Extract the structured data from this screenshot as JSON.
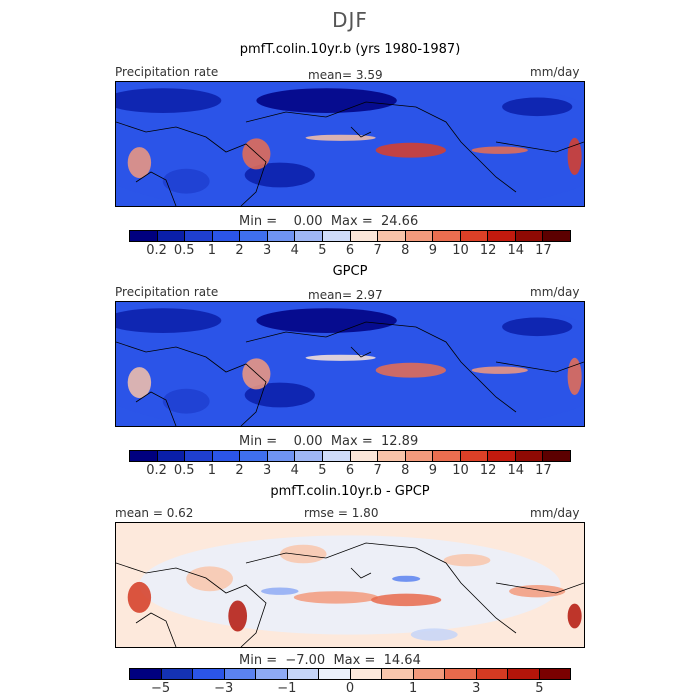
{
  "figure": {
    "season": "DJF"
  },
  "panels": [
    {
      "title": "pmfT.colin.10yr.b (yrs 1980-1987)",
      "left_label": "Precipitation rate",
      "center_label": "mean=    3.59",
      "right_label": "mm/day",
      "minmax": "Min =    0.00  Max =  24.66",
      "colorbar_ticks": [
        "0.2",
        "0.5",
        "1",
        "2",
        "3",
        "4",
        "5",
        "6",
        "7",
        "8",
        "9",
        "10",
        "12",
        "14",
        "17"
      ],
      "kind": "field"
    },
    {
      "title": "GPCP",
      "left_label": "Precipitation rate",
      "center_label": "mean=    2.97",
      "right_label": "mm/day",
      "minmax": "Min =    0.00  Max =  12.89",
      "colorbar_ticks": [
        "0.2",
        "0.5",
        "1",
        "2",
        "3",
        "4",
        "5",
        "6",
        "7",
        "8",
        "9",
        "10",
        "12",
        "14",
        "17"
      ],
      "kind": "field"
    },
    {
      "title": "pmfT.colin.10yr.b - GPCP",
      "left_label": "mean =   0.62",
      "center_label": "rmse =    1.80",
      "right_label": "mm/day",
      "minmax": "Min =  −7.00  Max =  14.64",
      "colorbar_ticks": [
        "−5",
        "−3",
        "−1",
        "0",
        "1",
        "3",
        "5"
      ],
      "kind": "diff"
    }
  ],
  "colors": {
    "field_scale": [
      "#00007f",
      "#0a1fa8",
      "#1f3fd0",
      "#2b55e8",
      "#3f6fee",
      "#6f93f2",
      "#9fb7f5",
      "#cfdcf9",
      "#fbe6d8",
      "#f8c3a8",
      "#f39a7c",
      "#ea6e50",
      "#dc4027",
      "#c21a0e",
      "#8f0a04",
      "#5c0000"
    ],
    "diff_scale": [
      "#00007f",
      "#1432b4",
      "#2b55e8",
      "#5b82f0",
      "#8eaaf4",
      "#c5d5f8",
      "#eaf0fb",
      "#fde9dc",
      "#f8c6ac",
      "#f29a7c",
      "#e86a4c",
      "#d43a22",
      "#b3150a",
      "#7a0000"
    ],
    "coast": "#000000"
  }
}
